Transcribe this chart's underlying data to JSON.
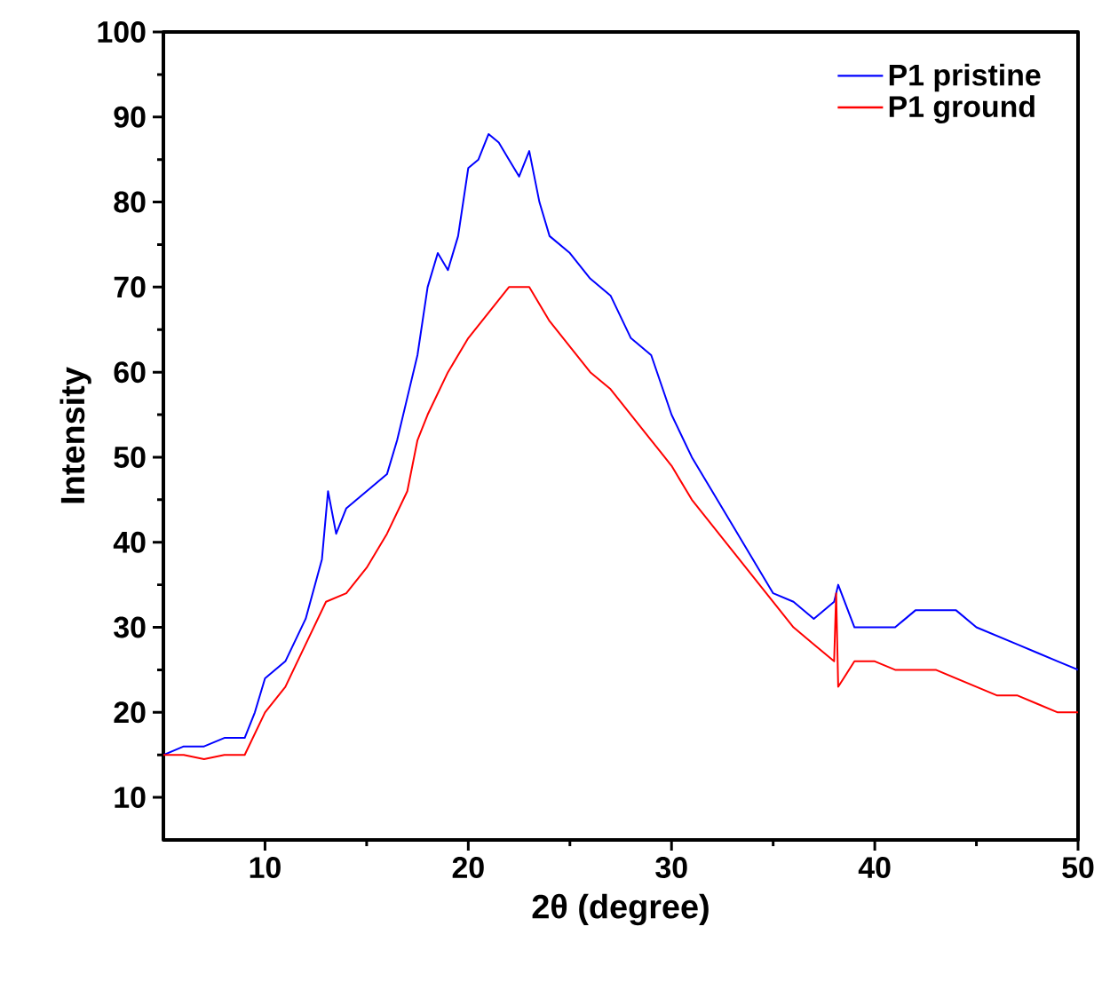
{
  "chart_data": {
    "type": "line",
    "xlabel": "2θ (degree)",
    "ylabel": "Intensity",
    "xlim": [
      5,
      50
    ],
    "ylim": [
      5,
      100
    ],
    "xticks": [
      10,
      20,
      30,
      40,
      50
    ],
    "yticks": [
      10,
      20,
      30,
      40,
      50,
      60,
      70,
      80,
      90,
      100
    ],
    "grid": false,
    "legend": "top right",
    "marker": "none",
    "line_style": "solid",
    "series": [
      {
        "name": "P1 pristine",
        "color": "#0000ff",
        "x": [
          5,
          6,
          7,
          8,
          9,
          9.5,
          10,
          11,
          12,
          12.8,
          13.1,
          13.5,
          14,
          15,
          16,
          16.5,
          17,
          17.5,
          18,
          18.5,
          19,
          19.5,
          20,
          20.5,
          21,
          21.5,
          22,
          22.5,
          23,
          23.5,
          24,
          25,
          26,
          27,
          28,
          29,
          30,
          31,
          32,
          33,
          34,
          35,
          36,
          37,
          38,
          38.2,
          39,
          40,
          41,
          42,
          43,
          44,
          45,
          46,
          47,
          48,
          49,
          50
        ],
        "values": [
          15,
          16,
          16,
          17,
          17,
          20,
          24,
          26,
          31,
          38,
          46,
          41,
          44,
          46,
          48,
          52,
          57,
          62,
          70,
          74,
          72,
          76,
          84,
          85,
          88,
          87,
          85,
          83,
          86,
          80,
          76,
          74,
          71,
          69,
          64,
          62,
          55,
          50,
          46,
          42,
          38,
          34,
          33,
          31,
          33,
          35,
          30,
          30,
          30,
          32,
          32,
          32,
          30,
          29,
          28,
          27,
          26,
          25
        ]
      },
      {
        "name": "P1 ground",
        "color": "#ff0000",
        "x": [
          5,
          6,
          7,
          8,
          9,
          10,
          11,
          12,
          13,
          14,
          15,
          16,
          17,
          17.5,
          18,
          19,
          20,
          21,
          22,
          23,
          24,
          25,
          26,
          27,
          28,
          29,
          30,
          31,
          32,
          33,
          34,
          35,
          36,
          37,
          38,
          38.1,
          38.2,
          39,
          40,
          41,
          42,
          43,
          44,
          45,
          46,
          47,
          48,
          49,
          50
        ],
        "values": [
          15,
          15,
          14.5,
          15,
          15,
          20,
          23,
          28,
          33,
          34,
          37,
          41,
          46,
          52,
          55,
          60,
          64,
          67,
          70,
          70,
          66,
          63,
          60,
          58,
          55,
          52,
          49,
          45,
          42,
          39,
          36,
          33,
          30,
          28,
          26,
          34,
          23,
          26,
          26,
          25,
          25,
          25,
          24,
          23,
          22,
          22,
          21,
          20,
          20
        ]
      }
    ]
  }
}
